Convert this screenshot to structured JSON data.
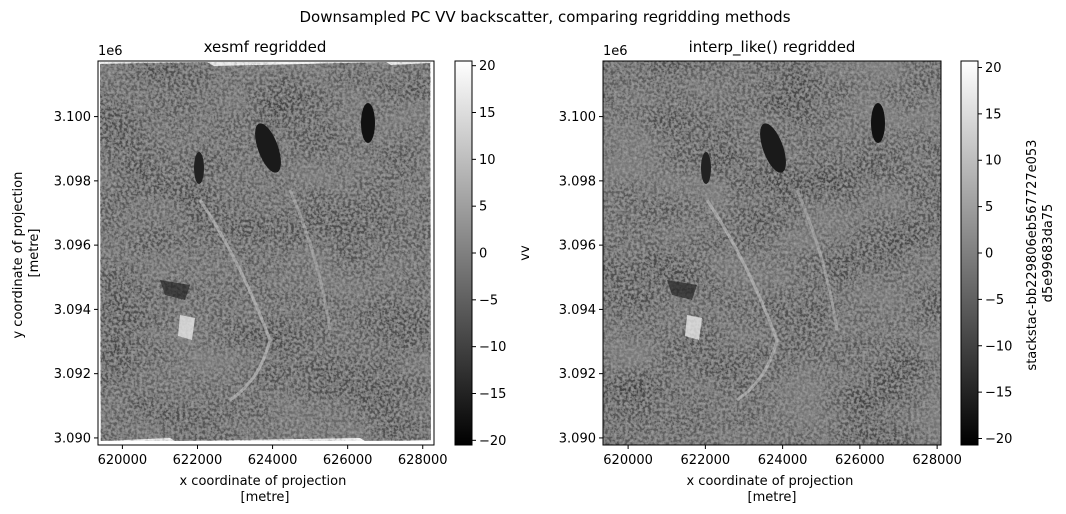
{
  "figure": {
    "suptitle": "Downsampled PC VV backscatter, comparing regridding methods"
  },
  "chart_data": [
    {
      "type": "heatmap",
      "title": "xesmf regridded",
      "xlabel": "x coordinate of projection\n[metre]",
      "ylabel": "y coordinate of projection\n[metre]",
      "y_offset_label": "1e6",
      "x_ticks": [
        620000,
        622000,
        624000,
        626000,
        628000
      ],
      "x_tick_labels": [
        "620000",
        "622000",
        "624000",
        "626000",
        "628000"
      ],
      "y_ticks": [
        3.09,
        3.092,
        3.094,
        3.096,
        3.098,
        3.1
      ],
      "y_tick_labels": [
        "3.090",
        "3.092",
        "3.094",
        "3.096",
        "3.098",
        "3.100"
      ],
      "xlim": [
        619350,
        628300
      ],
      "ylim": [
        3.08978,
        3.10173
      ],
      "colorbar": {
        "label": "vv",
        "ticks": [
          20,
          15,
          10,
          5,
          0,
          -5,
          -10,
          -15,
          -20
        ],
        "tick_labels": [
          "20",
          "15",
          "10",
          "5",
          "0",
          "−5",
          "−10",
          "−15",
          "−20"
        ],
        "range": [
          -20.5,
          20.5
        ]
      },
      "colormap": "gray",
      "edges": "irregular",
      "grid": false
    },
    {
      "type": "heatmap",
      "title": "interp_like() regridded",
      "xlabel": "x coordinate of projection\n[metre]",
      "ylabel": "",
      "y_offset_label": "1e6",
      "x_ticks": [
        620000,
        622000,
        624000,
        626000,
        628000
      ],
      "x_tick_labels": [
        "620000",
        "622000",
        "624000",
        "626000",
        "628000"
      ],
      "y_ticks": [
        3.09,
        3.092,
        3.094,
        3.096,
        3.098,
        3.1
      ],
      "y_tick_labels": [
        "3.090",
        "3.092",
        "3.094",
        "3.096",
        "3.098",
        "3.100"
      ],
      "xlim": [
        619350,
        628100
      ],
      "ylim": [
        3.08978,
        3.10173
      ],
      "colorbar": {
        "label": "stackstac-bb229806eb567727e053\nd5e99683da75",
        "ticks": [
          20,
          15,
          10,
          5,
          0,
          -5,
          -10,
          -15,
          -20
        ],
        "tick_labels": [
          "20",
          "15",
          "10",
          "5",
          "0",
          "−5",
          "−10",
          "−15",
          "−20"
        ],
        "range": [
          -20.7,
          20.7
        ]
      },
      "colormap": "gray",
      "edges": "regular",
      "grid": false
    }
  ]
}
